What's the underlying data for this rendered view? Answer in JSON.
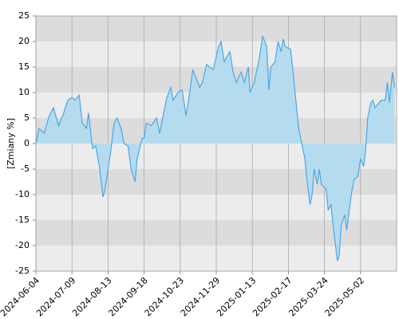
{
  "chart_data": {
    "type": "area",
    "y_label": "[Zmiany %]",
    "xlim": [
      "2024-06-04",
      "2025-06-06"
    ],
    "xticks": [
      "2024-06-04",
      "2024-07-09",
      "2024-08-13",
      "2024-09-18",
      "2024-10-23",
      "2024-11-29",
      "2025-01-13",
      "2025-02-17",
      "2025-03-24",
      "2025-05-02"
    ],
    "ylim": [
      -25,
      25
    ],
    "yticks": [
      25,
      20,
      15,
      10,
      5,
      0,
      -5,
      -10,
      -15,
      -20,
      -25
    ],
    "grid": true,
    "band_colors": [
      "#dcdcdc",
      "#ececec"
    ],
    "series": [
      {
        "color": "#4ca6e8",
        "fill": "#b4dcee",
        "x": [
          "2024-06-04",
          "2024-06-07",
          "2024-06-12",
          "2024-06-17",
          "2024-06-21",
          "2024-06-26",
          "2024-07-01",
          "2024-07-05",
          "2024-07-09",
          "2024-07-12",
          "2024-07-16",
          "2024-07-19",
          "2024-07-23",
          "2024-07-25",
          "2024-07-29",
          "2024-08-01",
          "2024-08-05",
          "2024-08-08",
          "2024-08-10",
          "2024-08-13",
          "2024-08-16",
          "2024-08-19",
          "2024-08-22",
          "2024-08-26",
          "2024-08-29",
          "2024-09-02",
          "2024-09-05",
          "2024-09-09",
          "2024-09-11",
          "2024-09-16",
          "2024-09-18",
          "2024-09-20",
          "2024-09-25",
          "2024-09-30",
          "2024-10-03",
          "2024-10-07",
          "2024-10-10",
          "2024-10-14",
          "2024-10-16",
          "2024-10-21",
          "2024-10-25",
          "2024-10-29",
          "2024-11-01",
          "2024-11-05",
          "2024-11-08",
          "2024-11-12",
          "2024-11-15",
          "2024-11-19",
          "2024-11-22",
          "2024-11-26",
          "2024-12-02",
          "2024-12-05",
          "2024-12-09",
          "2024-12-12",
          "2024-12-16",
          "2024-12-20",
          "2024-12-24",
          "2024-12-30",
          "2025-01-03",
          "2025-01-08",
          "2025-01-10",
          "2025-01-15",
          "2025-01-20",
          "2025-01-23",
          "2025-01-27",
          "2025-01-29",
          "2025-01-31",
          "2025-02-04",
          "2025-02-07",
          "2025-02-10",
          "2025-02-12",
          "2025-02-14",
          "2025-02-19",
          "2025-02-21",
          "2025-02-25",
          "2025-02-27",
          "2025-03-03",
          "2025-03-05",
          "2025-03-07",
          "2025-03-10",
          "2025-03-12",
          "2025-03-14",
          "2025-03-17",
          "2025-03-19",
          "2025-03-21",
          "2025-03-26",
          "2025-03-28",
          "2025-03-31",
          "2025-04-03",
          "2025-04-07",
          "2025-04-09",
          "2025-04-11",
          "2025-04-15",
          "2025-04-17",
          "2025-04-22",
          "2025-04-25",
          "2025-04-29",
          "2025-05-02",
          "2025-05-05",
          "2025-05-07",
          "2025-05-09",
          "2025-05-12",
          "2025-05-14",
          "2025-05-16",
          "2025-05-20",
          "2025-05-22",
          "2025-05-26",
          "2025-05-28",
          "2025-05-30",
          "2025-06-02",
          "2025-06-04"
        ],
        "values": [
          0,
          3,
          2,
          5.5,
          7,
          3.5,
          6,
          8.5,
          9,
          8.5,
          9.5,
          4,
          3,
          6,
          -1,
          -0.5,
          -5,
          -10.5,
          -9,
          -5,
          -1,
          4,
          5,
          3,
          0,
          -0.5,
          -5,
          -7.5,
          -3,
          1,
          1,
          4,
          3.5,
          5,
          2,
          6,
          9,
          11,
          8.5,
          10,
          10.5,
          5.5,
          9,
          14.5,
          13,
          11,
          12,
          15.5,
          15,
          14.5,
          19,
          20,
          16,
          17,
          18,
          14,
          12,
          14,
          12,
          15,
          10,
          12,
          17,
          21,
          19,
          10.5,
          15,
          16,
          20,
          18,
          20.5,
          19,
          18.5,
          15,
          7,
          3,
          -1,
          -3,
          -7,
          -12,
          -10,
          -5,
          -8,
          -5,
          -8,
          -9,
          -13,
          -12,
          -17,
          -23,
          -22,
          -16,
          -14,
          -17,
          -10,
          -7,
          -6.5,
          -3,
          -4.5,
          -1,
          5,
          8,
          8.5,
          7,
          8,
          8.5,
          8.5,
          12,
          8,
          14,
          11
        ]
      }
    ]
  }
}
